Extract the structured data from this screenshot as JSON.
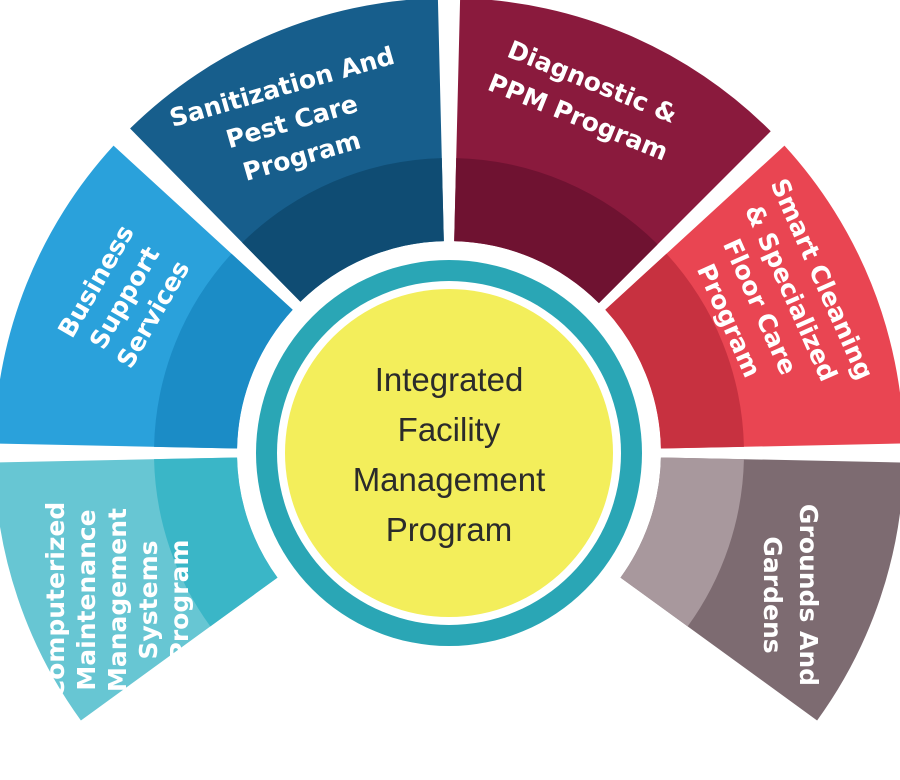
{
  "center": {
    "lines": [
      "Integrated",
      "Facility",
      "Management",
      "Program"
    ],
    "fill_color": "#f3ee5b",
    "ring_color": "#2aa6b5"
  },
  "segments": [
    {
      "id": "computerized-maintenance",
      "lines": [
        "Computerized",
        "Maintenance",
        "Management",
        "Systems",
        "Program"
      ],
      "outer_color": "#67c6d3",
      "inner_color": "#3ab6c7"
    },
    {
      "id": "business-support",
      "lines": [
        "Business",
        "Support",
        "Services"
      ],
      "outer_color": "#2aa1db",
      "inner_color": "#1b8cc6"
    },
    {
      "id": "sanitization-pest-care",
      "lines": [
        "Sanitization And",
        "Pest Care",
        "Program"
      ],
      "outer_color": "#175e8c",
      "inner_color": "#0f4c73"
    },
    {
      "id": "diagnostic-ppm",
      "lines": [
        "Diagnostic &",
        "PPM Program"
      ],
      "outer_color": "#8a1a3d",
      "inner_color": "#6f1231"
    },
    {
      "id": "smart-cleaning",
      "lines": [
        "Smart Cleaning",
        "& Specialized",
        "Floor Care",
        "Program"
      ],
      "outer_color": "#e94552",
      "inner_color": "#c73140"
    },
    {
      "id": "grounds-gardens",
      "lines": [
        "Grounds And",
        "Gardens"
      ],
      "outer_color": "#7d6b71",
      "inner_color": "#a8989d"
    }
  ]
}
